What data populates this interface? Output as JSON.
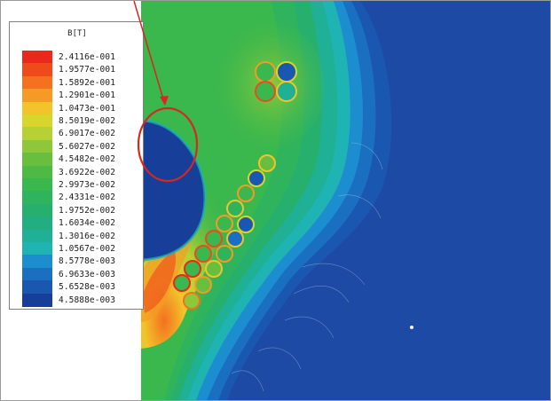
{
  "legend": {
    "title": "B[T]",
    "items": [
      {
        "value": "2.4116e-001",
        "color": "#e8291b"
      },
      {
        "value": "1.9577e-001",
        "color": "#ef4a1a"
      },
      {
        "value": "1.5892e-001",
        "color": "#f3711f"
      },
      {
        "value": "1.2901e-001",
        "color": "#f59a25"
      },
      {
        "value": "1.0473e-001",
        "color": "#f3c42a"
      },
      {
        "value": "8.5019e-002",
        "color": "#d8d62c"
      },
      {
        "value": "6.9017e-002",
        "color": "#b6d134"
      },
      {
        "value": "5.6027e-002",
        "color": "#8ec83a"
      },
      {
        "value": "4.5482e-002",
        "color": "#68bf3e"
      },
      {
        "value": "3.6922e-002",
        "color": "#4eb944"
      },
      {
        "value": "2.9973e-002",
        "color": "#3ab74d"
      },
      {
        "value": "2.4331e-002",
        "color": "#2fb35c"
      },
      {
        "value": "1.9752e-002",
        "color": "#27b06d"
      },
      {
        "value": "1.6034e-002",
        "color": "#22ae80"
      },
      {
        "value": "1.3016e-002",
        "color": "#1fb096"
      },
      {
        "value": "1.0567e-002",
        "color": "#1fb3b4"
      },
      {
        "value": "8.5778e-003",
        "color": "#1c8ed0"
      },
      {
        "value": "6.9633e-003",
        "color": "#1a6fc1"
      },
      {
        "value": "5.6528e-003",
        "color": "#1a57b0"
      },
      {
        "value": "4.5888e-003",
        "color": "#173f99"
      }
    ]
  },
  "colors": {
    "background_field": "#1c4aa5",
    "annotation": "#d7271f"
  }
}
